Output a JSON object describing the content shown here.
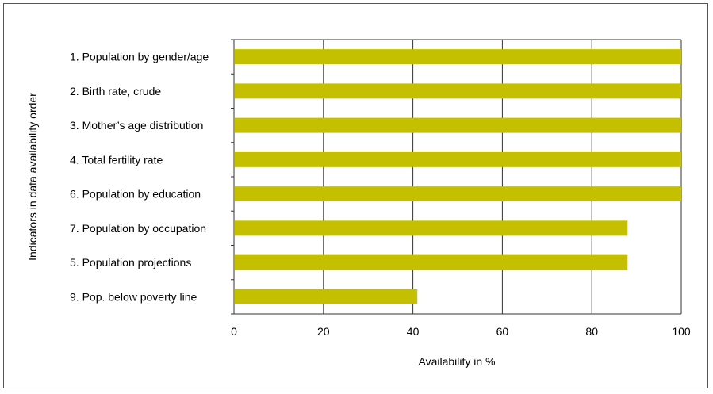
{
  "chart_data": {
    "type": "bar",
    "orientation": "horizontal",
    "categories": [
      "1. Population by gender/age",
      "2. Birth rate, crude",
      "3. Mother’s age distribution",
      "4. Total fertility rate",
      "6. Population by education",
      "7. Population by occupation",
      "5. Population projections",
      "9. Pop. below poverty line"
    ],
    "values": [
      100,
      100,
      100,
      100,
      100,
      88,
      88,
      41
    ],
    "xlabel": "Availability in %",
    "ylabel": "Indicators in data availability order",
    "xlim": [
      0,
      100
    ],
    "xticks": [
      "0",
      "20",
      "40",
      "60",
      "80",
      "100"
    ],
    "grid": "vertical",
    "legend": "none",
    "bar_color": "#c4c000"
  }
}
